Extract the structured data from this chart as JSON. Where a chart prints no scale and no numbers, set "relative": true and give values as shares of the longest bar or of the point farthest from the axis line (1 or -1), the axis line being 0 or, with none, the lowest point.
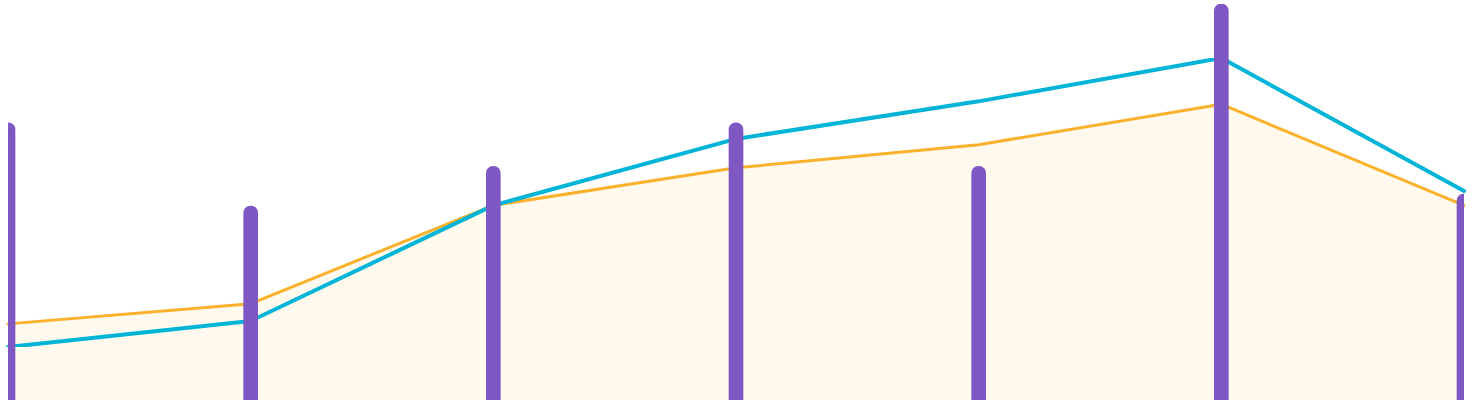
{
  "chart_data": [
    {
      "type": "bar",
      "relative": true,
      "categories": [
        null,
        null,
        null,
        null,
        null,
        null,
        null
      ],
      "color": "#7e57c2",
      "values": [
        0.7,
        0.49,
        0.59,
        0.7,
        0.59,
        1,
        0.52
      ]
    },
    {
      "type": "line",
      "relative": true,
      "categories": [
        null,
        null,
        null,
        null,
        null,
        null,
        null
      ],
      "series": [
        {
          "type": "line",
          "color": "#00b4d8",
          "values": [
            0,
            0.09,
            0.49,
            0.72,
            0.85,
            1,
            0.54
          ]
        },
        {
          "type": "area",
          "color": "#fbb12b",
          "values": [
            0.08,
            0.15,
            0.49,
            0.62,
            0.7,
            0.84,
            0.49
          ]
        }
      ]
    }
  ]
}
